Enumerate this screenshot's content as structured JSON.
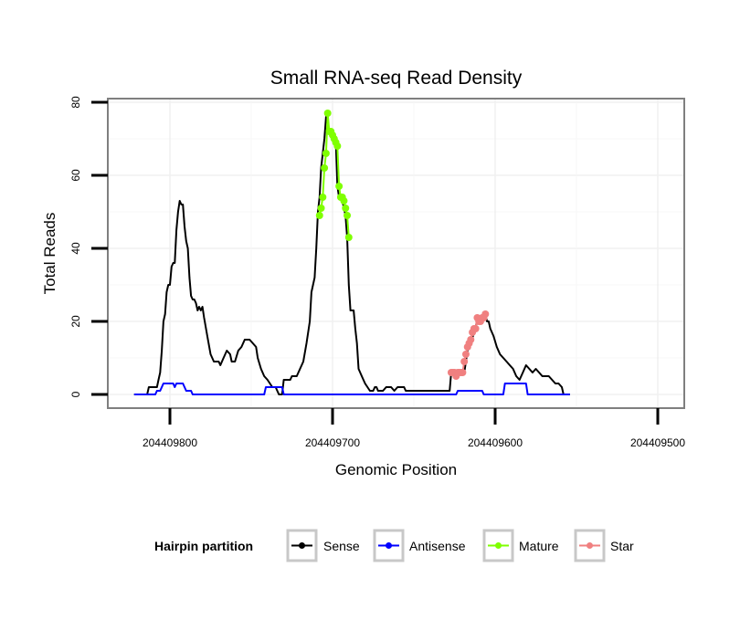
{
  "chart_data": {
    "type": "line",
    "title": "Small RNA-seq Read Density",
    "xlabel": "Genomic Position",
    "ylabel": "Total Reads",
    "xlim": [
      204409837,
      204409483
    ],
    "ylim": [
      -3.5,
      81
    ],
    "x_reversed": true,
    "x_ticks": [
      204409800,
      204409700,
      204409600,
      204409500
    ],
    "x_tick_labels": [
      "204409800",
      "204409700",
      "204409600",
      "204409500"
    ],
    "y_ticks": [
      0,
      20,
      40,
      60,
      80
    ],
    "y_tick_labels": [
      "0",
      "20",
      "40",
      "60",
      "80"
    ],
    "grid": true,
    "legend": {
      "title": "Hairpin partition",
      "position": "bottom",
      "entries": [
        {
          "name": "Sense",
          "color": "#000000"
        },
        {
          "name": "Antisense",
          "color": "#0000ff"
        },
        {
          "name": "Mature",
          "color": "#7fff00"
        },
        {
          "name": "Star",
          "color": "#f08080"
        }
      ]
    },
    "series": [
      {
        "name": "Sense",
        "color": "#000000",
        "type": "line",
        "points": [
          [
            204409822,
            0
          ],
          [
            204409814,
            0
          ],
          [
            204409813,
            2
          ],
          [
            204409808,
            2
          ],
          [
            204409807,
            4
          ],
          [
            204409806,
            6
          ],
          [
            204409805,
            12
          ],
          [
            204409804,
            20
          ],
          [
            204409803,
            22
          ],
          [
            204409802,
            28
          ],
          [
            204409801,
            30
          ],
          [
            204409800,
            30
          ],
          [
            204409799,
            35
          ],
          [
            204409798,
            36
          ],
          [
            204409797,
            36
          ],
          [
            204409796,
            45
          ],
          [
            204409795,
            50
          ],
          [
            204409794,
            53
          ],
          [
            204409793,
            52
          ],
          [
            204409792,
            52
          ],
          [
            204409791,
            46
          ],
          [
            204409790,
            42
          ],
          [
            204409789,
            40
          ],
          [
            204409788,
            32
          ],
          [
            204409787,
            27
          ],
          [
            204409786,
            26
          ],
          [
            204409785,
            26
          ],
          [
            204409784,
            25
          ],
          [
            204409783,
            23
          ],
          [
            204409782,
            24
          ],
          [
            204409781,
            23
          ],
          [
            204409780,
            24
          ],
          [
            204409779,
            21
          ],
          [
            204409777,
            16
          ],
          [
            204409775,
            11
          ],
          [
            204409773,
            9
          ],
          [
            204409770,
            9
          ],
          [
            204409769,
            8
          ],
          [
            204409767,
            10
          ],
          [
            204409765,
            12
          ],
          [
            204409763,
            11
          ],
          [
            204409762,
            9
          ],
          [
            204409760,
            9
          ],
          [
            204409758,
            12
          ],
          [
            204409756,
            13
          ],
          [
            204409754,
            15
          ],
          [
            204409751,
            15
          ],
          [
            204409749,
            14
          ],
          [
            204409747,
            13
          ],
          [
            204409746,
            10
          ],
          [
            204409744,
            7
          ],
          [
            204409742,
            5
          ],
          [
            204409740,
            4
          ],
          [
            204409737,
            2
          ],
          [
            204409735,
            2
          ],
          [
            204409733,
            0
          ],
          [
            204409731,
            0
          ],
          [
            204409730,
            4
          ],
          [
            204409726,
            4
          ],
          [
            204409725,
            5
          ],
          [
            204409722,
            5
          ],
          [
            204409720,
            7
          ],
          [
            204409718,
            9
          ],
          [
            204409716,
            14
          ],
          [
            204409714,
            20
          ],
          [
            204409713,
            28
          ],
          [
            204409711,
            32
          ],
          [
            204409710,
            40
          ],
          [
            204409709,
            50
          ],
          [
            204409708,
            54
          ],
          [
            204409707,
            62
          ],
          [
            204409706,
            66
          ],
          [
            204409705,
            70
          ],
          [
            204409704,
            76
          ],
          [
            204409702,
            72
          ],
          [
            204409701,
            72
          ],
          [
            204409700,
            71
          ],
          [
            204409699,
            70
          ],
          [
            204409698,
            69
          ],
          [
            204409697,
            57
          ],
          [
            204409696,
            54
          ],
          [
            204409695,
            54
          ],
          [
            204409694,
            53
          ],
          [
            204409693,
            51
          ],
          [
            204409692,
            49
          ],
          [
            204409691,
            43
          ],
          [
            204409690,
            30
          ],
          [
            204409689,
            23
          ],
          [
            204409687,
            23
          ],
          [
            204409686,
            18
          ],
          [
            204409685,
            14
          ],
          [
            204409684,
            7
          ],
          [
            204409682,
            5
          ],
          [
            204409680,
            3
          ],
          [
            204409677,
            1
          ],
          [
            204409675,
            1
          ],
          [
            204409674,
            2
          ],
          [
            204409673,
            2
          ],
          [
            204409672,
            1
          ],
          [
            204409669,
            1
          ],
          [
            204409667,
            2
          ],
          [
            204409664,
            2
          ],
          [
            204409662,
            1
          ],
          [
            204409660,
            2
          ],
          [
            204409656,
            2
          ],
          [
            204409655,
            1
          ],
          [
            204409628,
            1
          ],
          [
            204409627,
            6
          ],
          [
            204409619,
            6
          ],
          [
            204409618,
            9
          ],
          [
            204409617,
            12
          ],
          [
            204409616,
            13
          ],
          [
            204409615,
            14
          ],
          [
            204409614,
            15
          ],
          [
            204409613,
            18
          ],
          [
            204409612,
            18
          ],
          [
            204409611,
            21
          ],
          [
            204409610,
            21
          ],
          [
            204409607,
            21
          ],
          [
            204409606,
            22
          ],
          [
            204409605,
            20
          ],
          [
            204409604,
            20
          ],
          [
            204409603,
            18
          ],
          [
            204409601,
            16
          ],
          [
            204409599,
            13
          ],
          [
            204409597,
            11
          ],
          [
            204409595,
            10
          ],
          [
            204409593,
            9
          ],
          [
            204409591,
            8
          ],
          [
            204409589,
            7
          ],
          [
            204409587,
            5
          ],
          [
            204409585,
            4
          ],
          [
            204409583,
            6
          ],
          [
            204409581,
            8
          ],
          [
            204409579,
            7
          ],
          [
            204409577,
            6
          ],
          [
            204409575,
            7
          ],
          [
            204409573,
            6
          ],
          [
            204409571,
            5
          ],
          [
            204409567,
            5
          ],
          [
            204409565,
            4
          ],
          [
            204409563,
            3
          ],
          [
            204409561,
            3
          ],
          [
            204409559,
            2
          ],
          [
            204409558,
            0
          ],
          [
            204409554,
            0
          ]
        ]
      },
      {
        "name": "Antisense",
        "color": "#0000ff",
        "type": "line",
        "points": [
          [
            204409822,
            0
          ],
          [
            204409809,
            0
          ],
          [
            204409808,
            1
          ],
          [
            204409806,
            1
          ],
          [
            204409805,
            2
          ],
          [
            204409804,
            3
          ],
          [
            204409798,
            3
          ],
          [
            204409797,
            2
          ],
          [
            204409796,
            3
          ],
          [
            204409792,
            3
          ],
          [
            204409791,
            2
          ],
          [
            204409790,
            1
          ],
          [
            204409787,
            1
          ],
          [
            204409786,
            0
          ],
          [
            204409742,
            0
          ],
          [
            204409741,
            2
          ],
          [
            204409731,
            2
          ],
          [
            204409730,
            0
          ],
          [
            204409624,
            0
          ],
          [
            204409623,
            1
          ],
          [
            204409608,
            1
          ],
          [
            204409607,
            0
          ],
          [
            204409595,
            0
          ],
          [
            204409594,
            3
          ],
          [
            204409581,
            3
          ],
          [
            204409580,
            0
          ],
          [
            204409554,
            0
          ]
        ]
      },
      {
        "name": "Mature",
        "color": "#7fff00",
        "type": "line+points",
        "points": [
          [
            204409708,
            49
          ],
          [
            204409707,
            51
          ],
          [
            204409706,
            54
          ],
          [
            204409705,
            62
          ],
          [
            204409704,
            66
          ],
          [
            204409703,
            77
          ],
          [
            204409702,
            72
          ],
          [
            204409701,
            72
          ],
          [
            204409700,
            71
          ],
          [
            204409699,
            70
          ],
          [
            204409698,
            69
          ],
          [
            204409697,
            68
          ],
          [
            204409696,
            57
          ],
          [
            204409695,
            54
          ],
          [
            204409694,
            54
          ],
          [
            204409693,
            53
          ],
          [
            204409692,
            51
          ],
          [
            204409691,
            49
          ],
          [
            204409690,
            43
          ]
        ]
      },
      {
        "name": "Star",
        "color": "#f08080",
        "type": "line+points",
        "points": [
          [
            204409627,
            6
          ],
          [
            204409626,
            6
          ],
          [
            204409625,
            6
          ],
          [
            204409624,
            5
          ],
          [
            204409623,
            6
          ],
          [
            204409622,
            6
          ],
          [
            204409621,
            6
          ],
          [
            204409620,
            6
          ],
          [
            204409619,
            9
          ],
          [
            204409618,
            11
          ],
          [
            204409617,
            13
          ],
          [
            204409616,
            14
          ],
          [
            204409615,
            15
          ],
          [
            204409614,
            17
          ],
          [
            204409613,
            18
          ],
          [
            204409612,
            18
          ],
          [
            204409611,
            21
          ],
          [
            204409610,
            20
          ],
          [
            204409609,
            20
          ],
          [
            204409608,
            21
          ],
          [
            204409607,
            21
          ],
          [
            204409606,
            22
          ]
        ]
      }
    ]
  }
}
